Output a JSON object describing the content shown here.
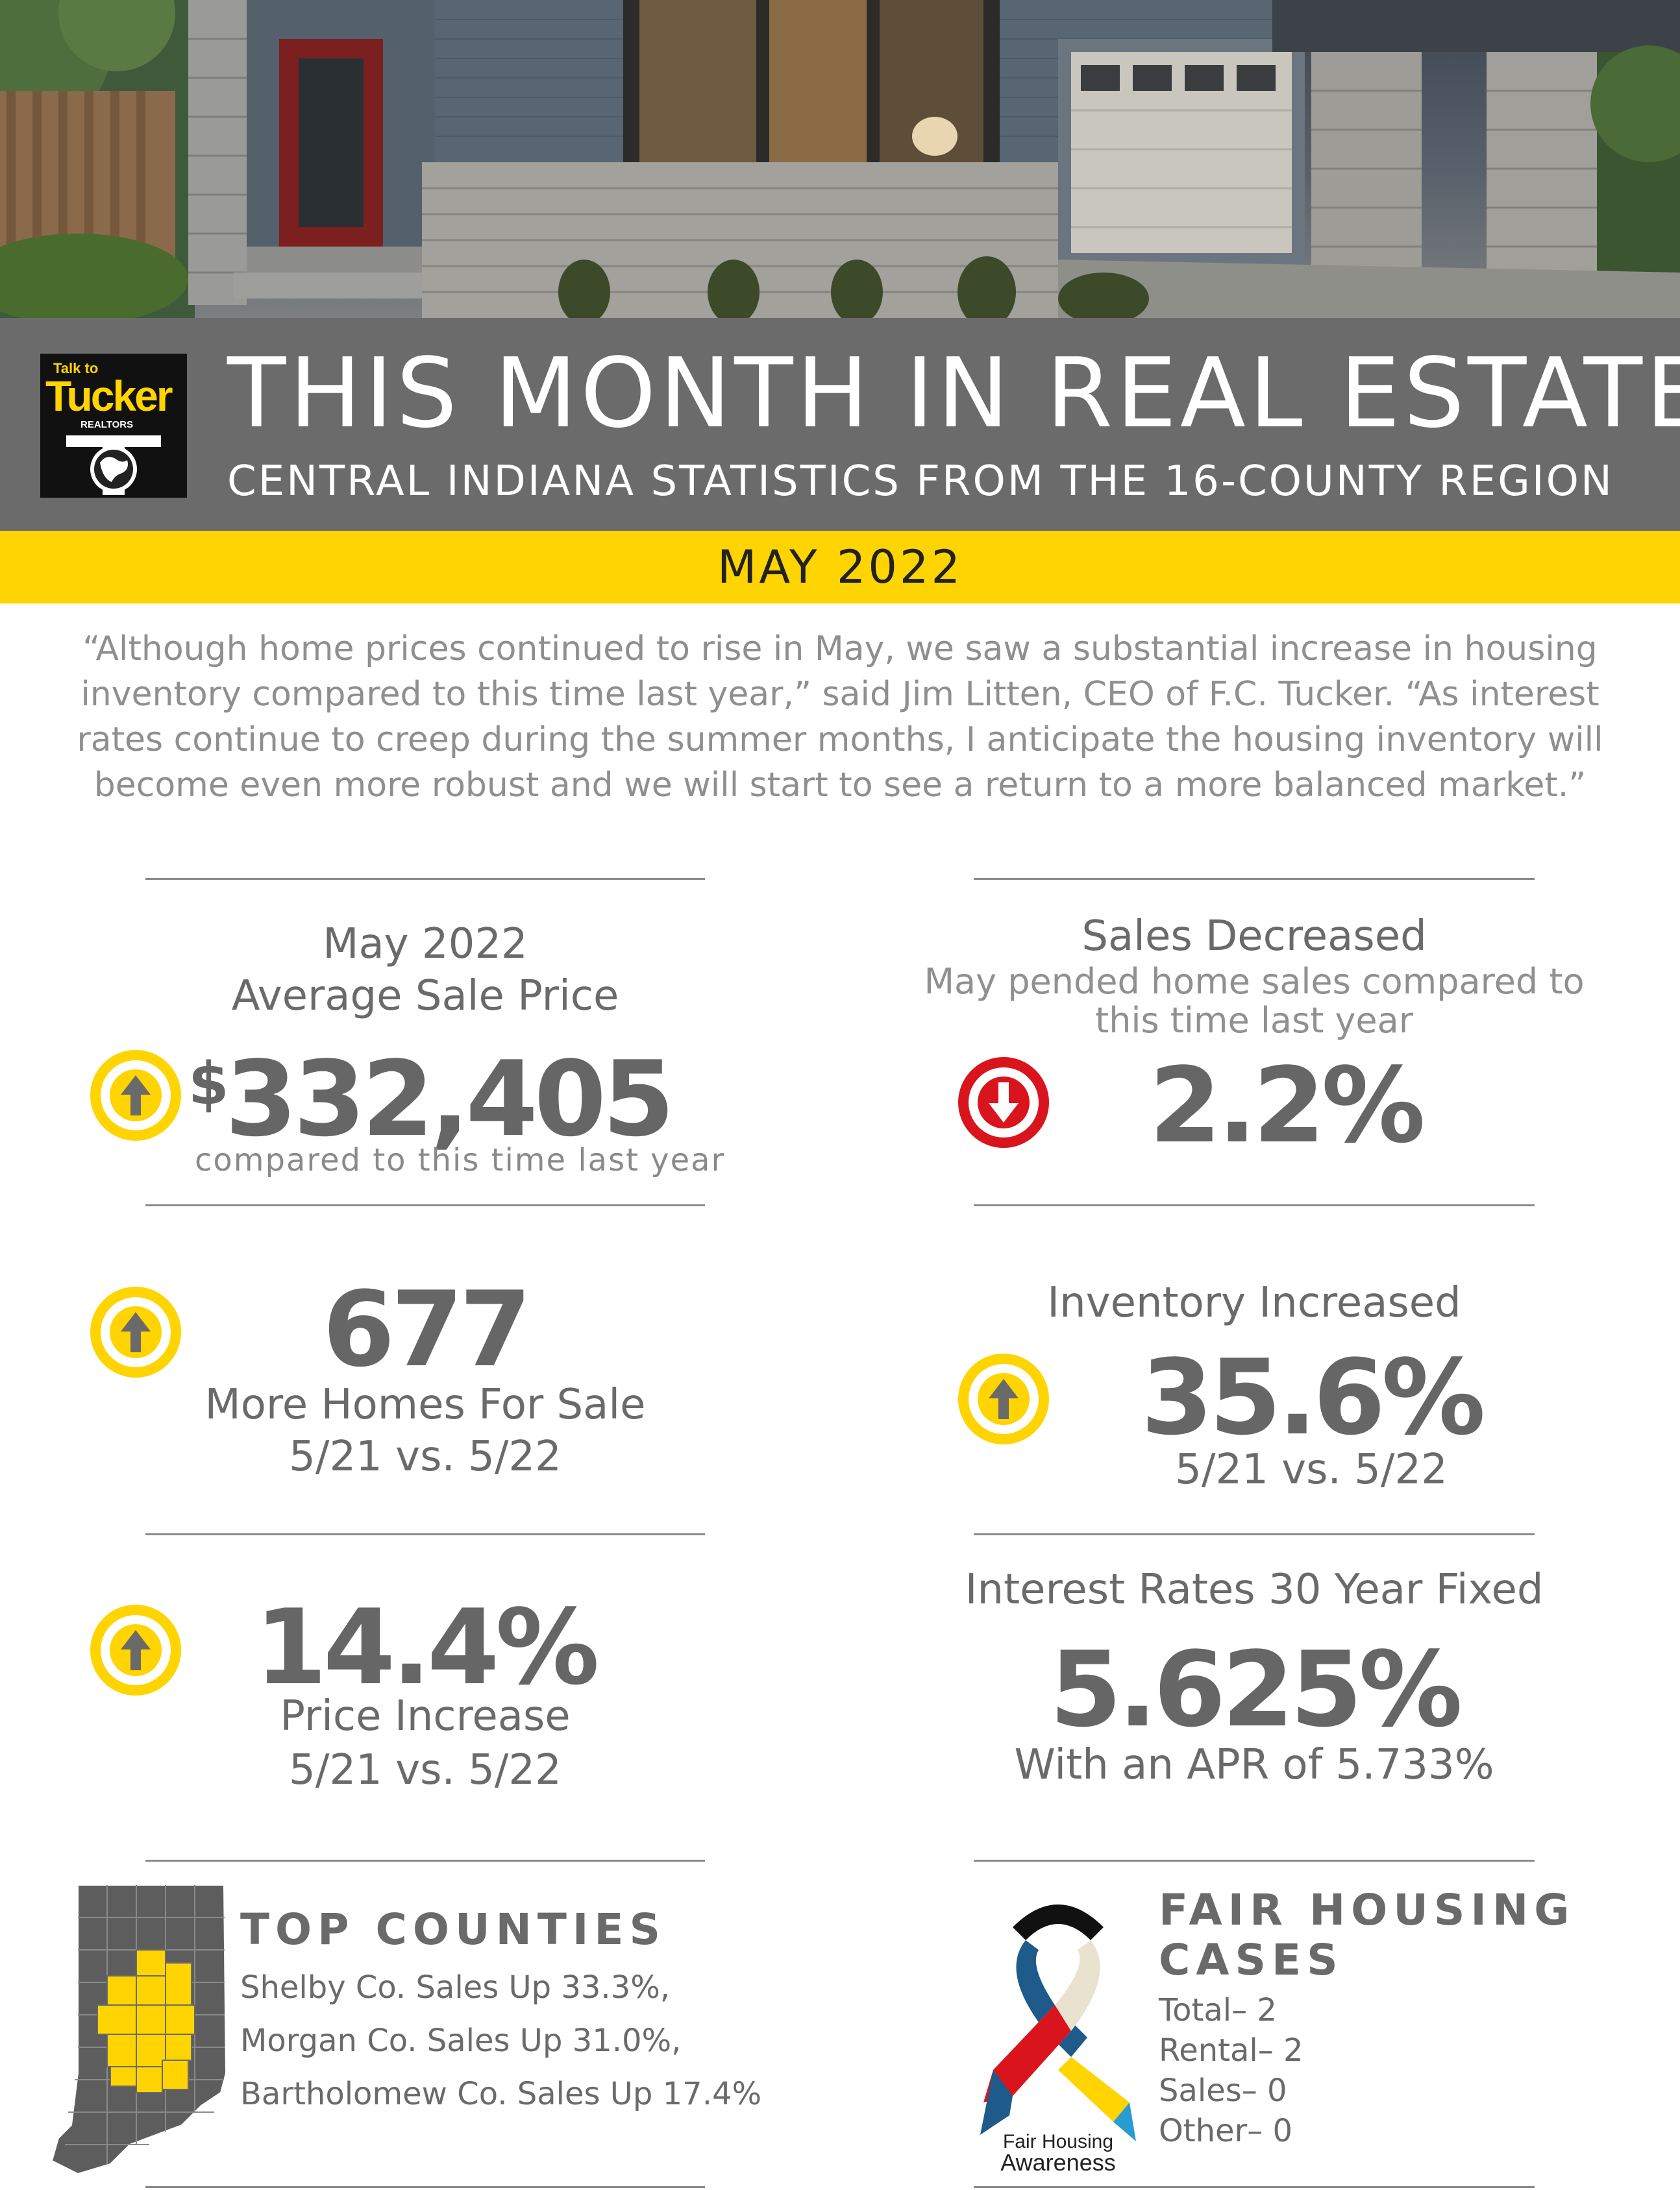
{
  "header": {
    "title": "THIS MONTH IN REAL ESTATE",
    "subtitle": "CENTRAL INDIANA STATISTICS FROM THE 16-COUNTY REGION",
    "month": "MAY 2022",
    "logo": {
      "talk_to": "Talk to",
      "brand": "Tucker",
      "realtors": "REALTORS"
    }
  },
  "quote": "“Although home prices continued to rise in May, we saw a substantial increase in housing inventory compared to this time last year,” said Jim Litten, CEO of F.C. Tucker. “As interest rates continue to creep during the summer months, I anticipate the housing inventory will become even more robust and we will start to see a return to a more balanced market.”",
  "stats": {
    "avg_price": {
      "label_line1": "May 2022",
      "label_line2": "Average Sale Price",
      "currency": "$",
      "value": "332,405",
      "note": "compared to this time last year",
      "direction": "up",
      "icon": "arrow-up-circle-icon"
    },
    "sales": {
      "label": "Sales Decreased",
      "sub_line1": "May pended home sales compared to",
      "sub_line2": "this time last year",
      "value": "2.2%",
      "direction": "down",
      "icon": "arrow-down-circle-icon"
    },
    "homes": {
      "value": "677",
      "label": "More Homes For Sale",
      "period": "5/21 vs. 5/22",
      "direction": "up",
      "icon": "arrow-up-circle-icon"
    },
    "inventory": {
      "label": "Inventory Increased",
      "value": "35.6%",
      "period": "5/21 vs. 5/22",
      "direction": "up",
      "icon": "arrow-up-circle-icon"
    },
    "price_increase": {
      "value": "14.4%",
      "label": "Price Increase",
      "period": "5/21 vs. 5/22",
      "direction": "up",
      "icon": "arrow-up-circle-icon"
    },
    "interest": {
      "label": "Interest Rates 30 Year Fixed",
      "value": "5.625%",
      "apr": "With an APR of 5.733%"
    }
  },
  "top_counties": {
    "heading": "TOP COUNTIES",
    "items": [
      "Shelby Co. Sales Up 33.3%,",
      "Morgan Co. Sales Up 31.0%,",
      "Bartholomew Co. Sales Up 17.4%"
    ]
  },
  "fair_housing": {
    "heading_line1": "FAIR HOUSING",
    "heading_line2": "CASES",
    "items": [
      "Total– 2",
      "Rental– 2",
      "Sales– 0",
      "Other– 0"
    ],
    "ribbon_line1": "Fair Housing",
    "ribbon_line2": "Awareness"
  },
  "colors": {
    "accent_yellow": "#ffd400",
    "down_red": "#d9141c",
    "band_gray": "#6c6b6b",
    "text_gray": "#666666"
  }
}
